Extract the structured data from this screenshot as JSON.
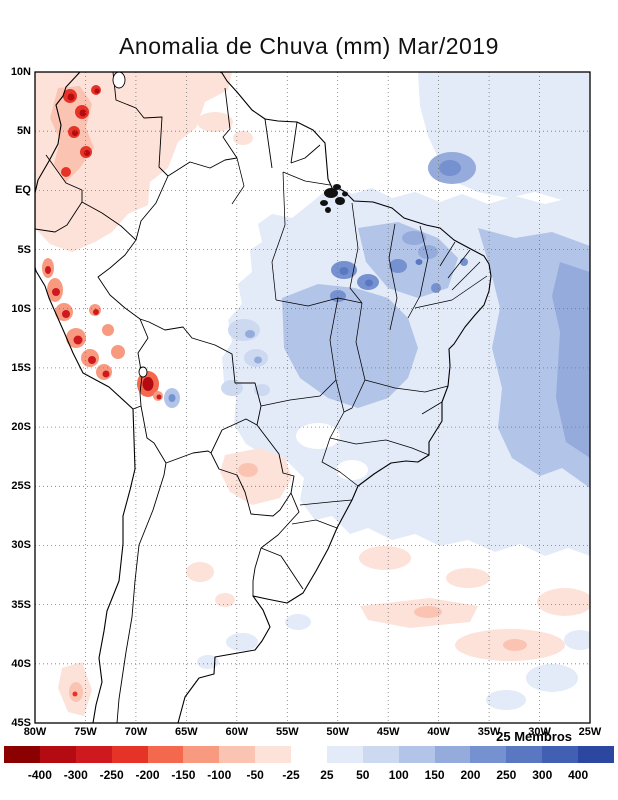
{
  "title": "Anomalia de Chuva (mm) Mar/2019",
  "map": {
    "lat_ticks": [
      "10N",
      "5N",
      "EQ",
      "5S",
      "10S",
      "15S",
      "20S",
      "25S",
      "30S",
      "35S",
      "40S",
      "45S"
    ],
    "lon_ticks": [
      "80W",
      "75W",
      "70W",
      "65W",
      "60W",
      "55W",
      "50W",
      "45W",
      "40W",
      "35W",
      "30W",
      "25W"
    ]
  },
  "legend": {
    "members_label": "25 Membros",
    "tick_labels": [
      "-400",
      "-300",
      "-250",
      "-200",
      "-150",
      "-100",
      "-50",
      "-25",
      "25",
      "50",
      "100",
      "150",
      "200",
      "250",
      "300",
      "400"
    ],
    "palette": [
      "#8b0000",
      "#b40a12",
      "#ce1a1e",
      "#e63328",
      "#f4694e",
      "#f89a80",
      "#fbc4b2",
      "#fde2d9",
      "#ffffff",
      "#e3eaf8",
      "#ccd9f1",
      "#b2c4e8",
      "#94abdc",
      "#7691cf",
      "#5a78c2",
      "#415fb3",
      "#2c479f"
    ]
  },
  "chart_data": {
    "type": "heatmap",
    "title": "Anomalia de Chuva (mm) Mar/2019",
    "variable": "rainfall anomaly (mm)",
    "ensemble": "25 Membros",
    "lat_ticks": [
      "10N",
      "5N",
      "EQ",
      "5S",
      "10S",
      "15S",
      "20S",
      "25S",
      "30S",
      "35S",
      "40S",
      "45S"
    ],
    "lon_ticks": [
      "80W",
      "75W",
      "70W",
      "65W",
      "60W",
      "55W",
      "50W",
      "45W",
      "40W",
      "35W",
      "30W",
      "25W"
    ],
    "colorbar_breakpoints": [
      -400,
      -300,
      -250,
      -200,
      -150,
      -100,
      -50,
      -25,
      25,
      50,
      100,
      150,
      200,
      250,
      300,
      400
    ],
    "legend_position": "bottom",
    "notable_features": "negative (red) anomalies along Andes/Peru coast and NW South America; positive (blue) anomalies over central-eastern Brazil and tropical Atlantic"
  }
}
